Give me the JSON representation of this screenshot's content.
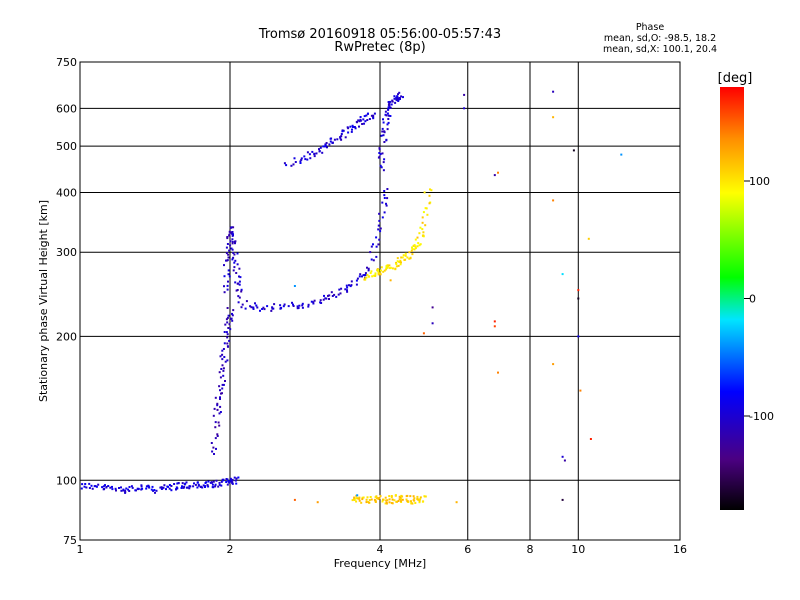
{
  "chart_data": {
    "type": "scatter",
    "title": "Tromsø 20160918 05:56:00-05:57:43",
    "subtitle": "RwPretec (8p)",
    "xlabel": "Frequency [MHz]",
    "ylabel": "Stationary phase Virtual Height [km]",
    "x_scale": "log",
    "y_scale": "log",
    "xlim": [
      1,
      16
    ],
    "ylim": [
      75,
      750
    ],
    "x_ticks": [
      1,
      2,
      4,
      6,
      8,
      10,
      16
    ],
    "x_tick_labels": [
      "1",
      "2",
      "4",
      "6",
      "8",
      "10",
      "16"
    ],
    "y_ticks": [
      75,
      100,
      200,
      300,
      400,
      500,
      600,
      750
    ],
    "y_tick_labels": [
      "75",
      "100",
      "200",
      "300",
      "400",
      "500",
      "600",
      "750"
    ],
    "grid": true,
    "stats": {
      "title": "Phase",
      "line_o": "mean, sd,O: -98.5, 18.2",
      "line_x": "mean, sd,X: 100.1, 20.4"
    },
    "colorbar": {
      "label": "[deg]",
      "min": -180,
      "max": 180,
      "ticks": [
        100,
        0,
        -100
      ],
      "tick_labels": [
        "100",
        "0",
        "-100"
      ],
      "colormap": "rainbow-black-to-red"
    },
    "series": [
      {
        "traces": [
          {
            "x": [
              1.0,
              1.1,
              1.2,
              1.3,
              1.4,
              1.5,
              1.6,
              1.7,
              1.8,
              1.9,
              2.0,
              2.05
            ],
            "y": [
              98,
              97,
              96,
              97,
              96,
              97,
              98,
              98,
              98,
              99,
              100,
              101
            ],
            "phase": -95
          },
          {
            "x": [
              1.85,
              1.88,
              1.91,
              1.94,
              1.97,
              2.0
            ],
            "y": [
              115,
              140,
              160,
              185,
              210,
              230
            ],
            "phase": -110
          },
          {
            "x": [
              1.95,
              1.98,
              2.0,
              2.03,
              2.06,
              2.1
            ],
            "y": [
              250,
              300,
              340,
              310,
              270,
              240
            ],
            "phase": -105
          },
          {
            "x": [
              2.1,
              2.3,
              2.6,
              2.9,
              3.2,
              3.5,
              3.8,
              4.0,
              4.1
            ],
            "y": [
              235,
              230,
              232,
              235,
              245,
              258,
              280,
              340,
              420
            ],
            "phase": -100
          },
          {
            "x": [
              4.0,
              4.05,
              4.1,
              4.2,
              4.3,
              4.4
            ],
            "y": [
              450,
              520,
              580,
              620,
              635,
              640
            ],
            "phase": -100
          },
          {
            "x": [
              2.6,
              2.9,
              3.1,
              3.3,
              3.5,
              3.7,
              3.9
            ],
            "y": [
              462,
              480,
              500,
              525,
              550,
              575,
              580
            ],
            "phase": -98
          },
          {
            "x": [
              3.7,
              3.9,
              4.1,
              4.3,
              4.5,
              4.7,
              4.9,
              5.0
            ],
            "y": [
              268,
              272,
              278,
              285,
              295,
              310,
              340,
              420
            ],
            "phase": 100
          },
          {
            "x": [
              3.5,
              3.7,
              3.9,
              4.1,
              4.3,
              4.5,
              4.7,
              4.9
            ],
            "y": [
              92,
              91,
              92,
              91,
              92,
              92,
              91,
              92
            ],
            "phase": 110
          }
        ]
      }
    ],
    "scatter_points": [
      {
        "x": 5.9,
        "y": 640,
        "phase": -120
      },
      {
        "x": 5.9,
        "y": 600,
        "phase": -100
      },
      {
        "x": 6.9,
        "y": 440,
        "phase": 140
      },
      {
        "x": 6.8,
        "y": 435,
        "phase": -120
      },
      {
        "x": 8.9,
        "y": 650,
        "phase": -110
      },
      {
        "x": 8.9,
        "y": 575,
        "phase": 120
      },
      {
        "x": 8.9,
        "y": 385,
        "phase": 140
      },
      {
        "x": 9.8,
        "y": 490,
        "phase": -170
      },
      {
        "x": 12.2,
        "y": 480,
        "phase": -40
      },
      {
        "x": 9.3,
        "y": 270,
        "phase": -20
      },
      {
        "x": 10.5,
        "y": 320,
        "phase": 110
      },
      {
        "x": 10.0,
        "y": 250,
        "phase": 170
      },
      {
        "x": 10.0,
        "y": 240,
        "phase": -170
      },
      {
        "x": 5.1,
        "y": 230,
        "phase": -130
      },
      {
        "x": 5.1,
        "y": 213,
        "phase": -110
      },
      {
        "x": 6.8,
        "y": 215,
        "phase": 170
      },
      {
        "x": 6.8,
        "y": 210,
        "phase": 160
      },
      {
        "x": 8.9,
        "y": 175,
        "phase": 130
      },
      {
        "x": 6.9,
        "y": 168,
        "phase": 140
      },
      {
        "x": 10.1,
        "y": 154,
        "phase": 140
      },
      {
        "x": 10.6,
        "y": 122,
        "phase": 170
      },
      {
        "x": 9.3,
        "y": 112,
        "phase": -100
      },
      {
        "x": 9.4,
        "y": 110,
        "phase": -120
      },
      {
        "x": 9.3,
        "y": 91,
        "phase": -160
      },
      {
        "x": 4.9,
        "y": 203,
        "phase": 150
      },
      {
        "x": 4.2,
        "y": 262,
        "phase": 120
      },
      {
        "x": 10.0,
        "y": 200,
        "phase": -90
      },
      {
        "x": 5.7,
        "y": 90,
        "phase": 120
      },
      {
        "x": 3.6,
        "y": 93,
        "phase": -40
      },
      {
        "x": 3.0,
        "y": 90,
        "phase": 130
      },
      {
        "x": 2.7,
        "y": 91,
        "phase": 150
      },
      {
        "x": 2.7,
        "y": 255,
        "phase": -40
      }
    ]
  }
}
